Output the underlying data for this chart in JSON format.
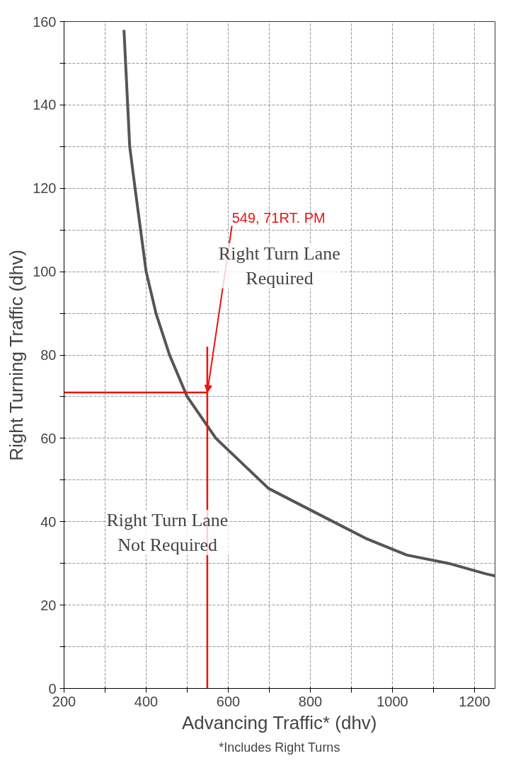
{
  "chart_data": {
    "type": "line",
    "xlabel": "Advancing Traffic* (dhv)",
    "ylabel": "Right Turning Traffic (dhv)",
    "xlim": [
      200,
      1250
    ],
    "ylim": [
      0,
      160
    ],
    "xticks": [
      200,
      {
        "value": 300,
        "label": null
      },
      400,
      {
        "value": 500,
        "label": null
      },
      600,
      {
        "value": 700,
        "label": null
      },
      800,
      {
        "value": 900,
        "label": null
      },
      1000,
      {
        "value": 1100,
        "label": null
      },
      1200
    ],
    "yticks": [
      0,
      {
        "value": 10,
        "label": null
      },
      20,
      {
        "value": 30,
        "label": null
      },
      40,
      {
        "value": 50,
        "label": null
      },
      60,
      {
        "value": 70,
        "label": null
      },
      80,
      {
        "value": 90,
        "label": null
      },
      100,
      {
        "value": 110,
        "label": null
      },
      120,
      {
        "value": 130,
        "label": null
      },
      140,
      {
        "value": 150,
        "label": null
      },
      160
    ],
    "grid": true,
    "marker": "none",
    "line_style": "solid",
    "series": [
      {
        "color": "#555555",
        "x": [
          346,
          360,
          373,
          400,
          424,
          457,
          500,
          570,
          698,
          836,
          935,
          1035,
          1137,
          1227,
          1250
        ],
        "values": [
          158,
          130,
          120,
          100,
          90,
          80,
          70,
          60,
          48,
          41,
          36,
          32,
          30,
          27.5,
          27
        ]
      },
      {
        "color": "#ee1111",
        "x": [
          200,
          549
        ],
        "values": [
          71,
          71
        ]
      },
      {
        "color": "#ee1111",
        "x": [
          549,
          549
        ],
        "values": [
          0,
          82
        ]
      }
    ],
    "annotations": [
      {
        "text": "549, 71RT. PM",
        "x": 549,
        "y": 71
      },
      "Right Turn Lane\nRequired",
      "Right Turn Lane\nNot Required",
      "*Includes Right Turns"
    ]
  }
}
